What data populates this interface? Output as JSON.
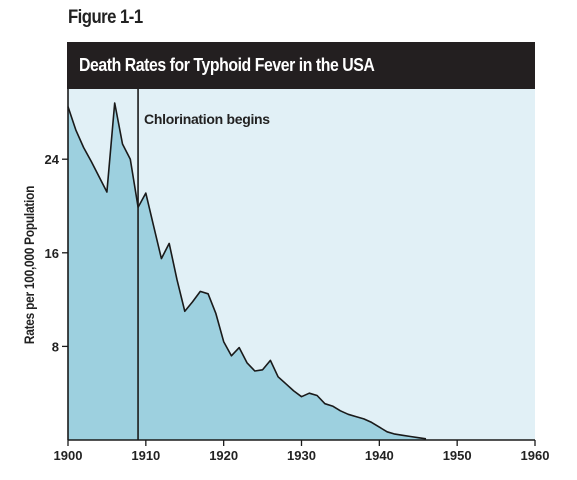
{
  "figure_label": "Figure 1-1",
  "colors": {
    "title_bar": "#231f20",
    "title_text": "#ffffff",
    "plot_background": "#e1f0f6",
    "area_fill": "#9dd0df",
    "line": "#1a1a1a"
  },
  "chart_data": {
    "type": "area",
    "title": "Death Rates for Typhoid Fever in the USA",
    "xlabel": "",
    "ylabel": "Rates per 100,000 Population",
    "xlim": [
      1900,
      1960
    ],
    "ylim": [
      0,
      30
    ],
    "xticks": [
      1900,
      1910,
      1920,
      1930,
      1940,
      1950,
      1960
    ],
    "yticks": [
      8,
      16,
      24
    ],
    "grid": false,
    "series": [
      {
        "x": [
          1900,
          1901,
          1902,
          1903,
          1904,
          1905,
          1906,
          1907,
          1908,
          1909,
          1910,
          1911,
          1912,
          1913,
          1914,
          1915,
          1916,
          1917,
          1918,
          1919,
          1920,
          1921,
          1922,
          1923,
          1924,
          1925,
          1926,
          1927,
          1928,
          1929,
          1930,
          1931,
          1932,
          1933,
          1934,
          1935,
          1936,
          1937,
          1938,
          1939,
          1940,
          1941,
          1942,
          1943,
          1944,
          1945,
          1946
        ],
        "y": [
          28.5,
          26.5,
          25.0,
          23.8,
          22.5,
          21.2,
          28.8,
          25.3,
          24.0,
          19.9,
          21.1,
          18.3,
          15.5,
          16.8,
          13.7,
          11.0,
          11.8,
          12.7,
          12.5,
          10.8,
          8.4,
          7.2,
          7.9,
          6.6,
          5.9,
          6.0,
          6.8,
          5.4,
          4.8,
          4.2,
          3.7,
          4.0,
          3.8,
          3.1,
          2.9,
          2.5,
          2.2,
          2.0,
          1.8,
          1.5,
          1.1,
          0.7,
          0.5,
          0.4,
          0.3,
          0.2,
          0.1
        ]
      }
    ],
    "annotations": [
      {
        "type": "vline",
        "x": 1909,
        "label": "Chlorination begins"
      }
    ]
  }
}
